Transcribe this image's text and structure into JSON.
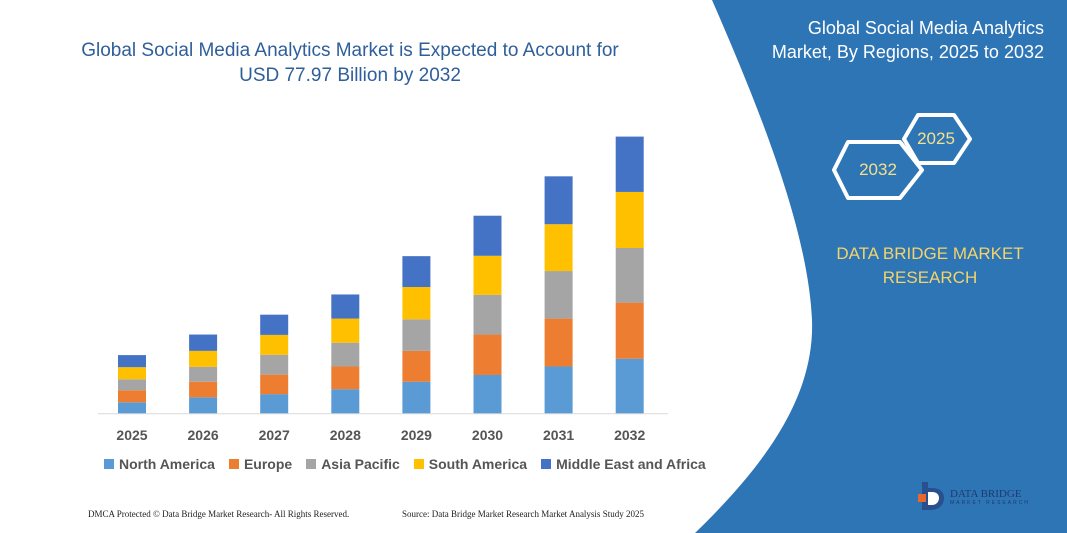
{
  "header": {
    "title_line1": "Global Social Media Analytics Market is Expected to Account for",
    "title_line2": "USD 77.97 Billion by 2032"
  },
  "side_panel": {
    "title_line1": "Global Social Media Analytics",
    "title_line2": "Market, By Regions, 2025 to 2032",
    "hex_start": "2025",
    "hex_end": "2032",
    "brand_line1": "DATA BRIDGE MARKET",
    "brand_line2": "RESEARCH",
    "panel_color": "#2E75B6"
  },
  "chart_data": {
    "type": "bar",
    "stacked": true,
    "title": "Global Social Media Analytics Market is Expected to Account for USD 77.97 Billion by 2032",
    "categories": [
      "2025",
      "2026",
      "2027",
      "2028",
      "2029",
      "2030",
      "2031",
      "2032"
    ],
    "series": [
      {
        "name": "North America",
        "color": "#5B9BD5",
        "values": [
          3.1,
          4.5,
          5.4,
          6.8,
          8.9,
          10.8,
          13.2,
          15.4
        ]
      },
      {
        "name": "Europe",
        "color": "#ED7D31",
        "values": [
          3.4,
          4.4,
          5.5,
          6.4,
          8.7,
          11.4,
          13.5,
          15.8
        ]
      },
      {
        "name": "Asia Pacific",
        "color": "#A5A5A5",
        "values": [
          3.1,
          4.2,
          5.6,
          6.7,
          8.9,
          11.2,
          13.4,
          15.4
        ]
      },
      {
        "name": "South America",
        "color": "#FFC000",
        "values": [
          3.4,
          4.5,
          5.6,
          6.8,
          9.1,
          11.0,
          13.2,
          15.8
        ]
      },
      {
        "name": "Middle East and Africa",
        "color": "#4472C4",
        "values": [
          3.4,
          4.6,
          5.7,
          6.8,
          8.7,
          11.3,
          13.5,
          15.6
        ]
      }
    ],
    "ylim": [
      0,
      78
    ],
    "yaxis_shown": false,
    "grid": false,
    "legend_position": "bottom",
    "unit": "USD Billion"
  },
  "footer": {
    "left": "DMCA Protected © Data Bridge Market Research-  All Rights Reserved.",
    "right": "Source: Data Bridge Market Research  Market Analysis Study 2025"
  },
  "logo": {
    "text": "DATA BRIDGE",
    "subtext": "MARKET RESEARCH"
  }
}
